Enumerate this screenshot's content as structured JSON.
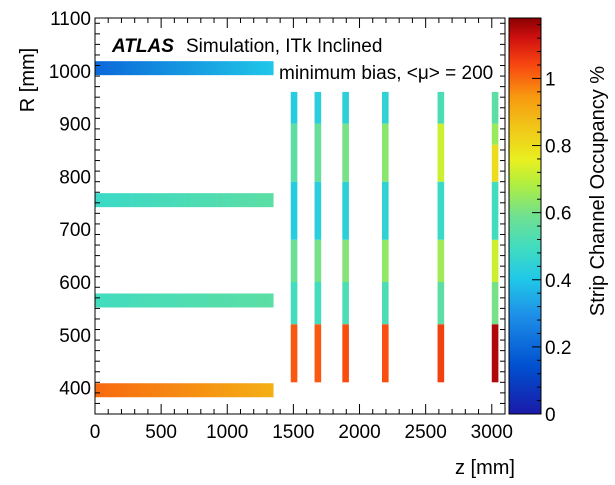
{
  "chart_data": {
    "type": "heatmap",
    "title": "",
    "annotations": {
      "experiment": "ATLAS",
      "subtitle": "Simulation, ITk Inclined",
      "sample": "minimum bias, <μ> = 200"
    },
    "xlabel": "z [mm]",
    "ylabel": "R [mm]",
    "zlabel": "Strip Channel Occupancy %",
    "xlim": [
      0,
      3100
    ],
    "ylim": [
      350,
      1100
    ],
    "zlim": [
      0,
      1.18
    ],
    "x_ticks": [
      "0",
      "500",
      "1000",
      "1500",
      "2000",
      "2500",
      "3000"
    ],
    "y_ticks": [
      "400",
      "500",
      "600",
      "700",
      "800",
      "900",
      "1000",
      "1100"
    ],
    "z_ticks": [
      "0",
      "0.2",
      "0.4",
      "0.6",
      "0.8",
      "1"
    ],
    "colormap": "rainbow (blue → cyan → green → yellow → orange → red)",
    "barrel_layers": [
      {
        "r": 1005,
        "z": [
          0,
          1350
        ],
        "occupancy": [
          0.2,
          0.4
        ]
      },
      {
        "r": 755,
        "z": [
          0,
          1350
        ],
        "occupancy": [
          0.48,
          0.55
        ]
      },
      {
        "r": 565,
        "z": [
          0,
          1350
        ],
        "occupancy": [
          0.5,
          0.55
        ]
      },
      {
        "r": 395,
        "z": [
          0,
          1350
        ],
        "occupancy": [
          1.0,
          0.9
        ]
      }
    ],
    "endcap_disks": [
      {
        "z_min": 1480,
        "z_max": 1530,
        "segments": [
          {
            "r": [
              410,
              520
            ],
            "occupancy": 1.02
          },
          {
            "r": [
              520,
              600
            ],
            "occupancy": 0.5
          },
          {
            "r": [
              600,
              680
            ],
            "occupancy": 0.58
          },
          {
            "r": [
              680,
              790
            ],
            "occupancy": 0.42
          },
          {
            "r": [
              790,
              900
            ],
            "occupancy": 0.55
          },
          {
            "r": [
              900,
              960
            ],
            "occupancy": 0.42
          }
        ]
      },
      {
        "z_min": 1660,
        "z_max": 1710,
        "segments": [
          {
            "r": [
              410,
              520
            ],
            "occupancy": 1.02
          },
          {
            "r": [
              520,
              600
            ],
            "occupancy": 0.5
          },
          {
            "r": [
              600,
              680
            ],
            "occupancy": 0.6
          },
          {
            "r": [
              680,
              790
            ],
            "occupancy": 0.43
          },
          {
            "r": [
              790,
              900
            ],
            "occupancy": 0.57
          },
          {
            "r": [
              900,
              960
            ],
            "occupancy": 0.43
          }
        ]
      },
      {
        "z_min": 1870,
        "z_max": 1920,
        "segments": [
          {
            "r": [
              410,
              520
            ],
            "occupancy": 1.03
          },
          {
            "r": [
              520,
              600
            ],
            "occupancy": 0.52
          },
          {
            "r": [
              600,
              680
            ],
            "occupancy": 0.62
          },
          {
            "r": [
              680,
              790
            ],
            "occupancy": 0.44
          },
          {
            "r": [
              790,
              900
            ],
            "occupancy": 0.6
          },
          {
            "r": [
              900,
              960
            ],
            "occupancy": 0.44
          }
        ]
      },
      {
        "z_min": 2170,
        "z_max": 2220,
        "segments": [
          {
            "r": [
              410,
              520
            ],
            "occupancy": 1.03
          },
          {
            "r": [
              520,
              600
            ],
            "occupancy": 0.52
          },
          {
            "r": [
              600,
              680
            ],
            "occupancy": 0.64
          },
          {
            "r": [
              680,
              790
            ],
            "occupancy": 0.45
          },
          {
            "r": [
              790,
              900
            ],
            "occupancy": 0.63
          },
          {
            "r": [
              900,
              960
            ],
            "occupancy": 0.45
          }
        ]
      },
      {
        "z_min": 2590,
        "z_max": 2640,
        "segments": [
          {
            "r": [
              410,
              520
            ],
            "occupancy": 1.05
          },
          {
            "r": [
              520,
              600
            ],
            "occupancy": 0.55
          },
          {
            "r": [
              600,
              680
            ],
            "occupancy": 0.66
          },
          {
            "r": [
              680,
              790
            ],
            "occupancy": 0.48
          },
          {
            "r": [
              790,
              900
            ],
            "occupancy": 0.72
          },
          {
            "r": [
              900,
              960
            ],
            "occupancy": 0.52
          }
        ]
      },
      {
        "z_min": 3000,
        "z_max": 3050,
        "segments": [
          {
            "r": [
              410,
              520
            ],
            "occupancy": 1.15
          },
          {
            "r": [
              520,
              600
            ],
            "occupancy": 0.6
          },
          {
            "r": [
              600,
              680
            ],
            "occupancy": 0.72
          },
          {
            "r": [
              680,
              790
            ],
            "occupancy": 0.5
          },
          {
            "r": [
              790,
              860
            ],
            "occupancy": 0.8
          },
          {
            "r": [
              860,
              900
            ],
            "occupancy": 0.65
          },
          {
            "r": [
              900,
              960
            ],
            "occupancy": 0.55
          }
        ]
      }
    ]
  }
}
